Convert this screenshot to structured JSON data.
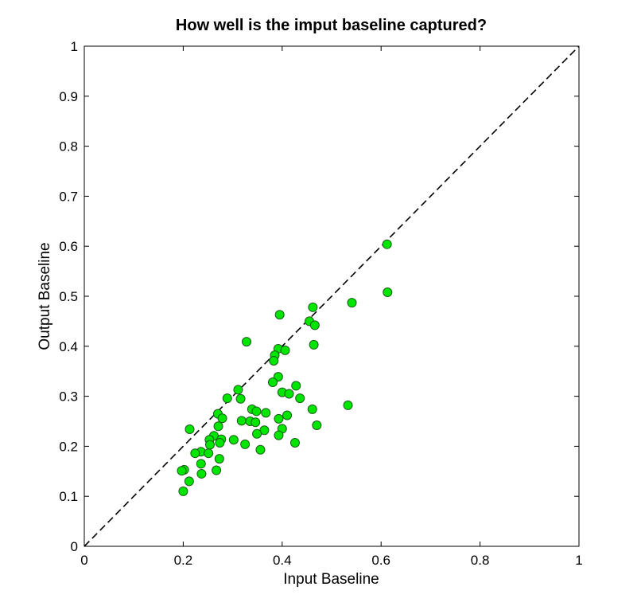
{
  "chart_data": {
    "type": "scatter",
    "title": "How well is the imput baseline captured?",
    "xlabel": "Input Baseline",
    "ylabel": "Output Baseline",
    "xlim": [
      0,
      1
    ],
    "ylim": [
      0,
      1
    ],
    "xticks": [
      0,
      0.2,
      0.4,
      0.6,
      0.8,
      1
    ],
    "xtick_labels": [
      "0",
      "0.2",
      "0.4",
      "0.6",
      "0.8",
      "1"
    ],
    "yticks": [
      0,
      0.1,
      0.2,
      0.3,
      0.4,
      0.5,
      0.6,
      0.7,
      0.8,
      0.9,
      1
    ],
    "ytick_labels": [
      "0",
      "0.1",
      "0.2",
      "0.3",
      "0.4",
      "0.5",
      "0.6",
      "0.7",
      "0.8",
      "0.9",
      "1"
    ],
    "grid": false,
    "reference_line": {
      "style": "dashed",
      "color": "#000000",
      "x": [
        0,
        1
      ],
      "y": [
        0,
        1
      ]
    },
    "marker_fill": "#00e600",
    "marker_edge": "#1a5c1a",
    "series": [
      {
        "points": [
          [
            0.612,
            0.604
          ],
          [
            0.613,
            0.508
          ],
          [
            0.541,
            0.487
          ],
          [
            0.462,
            0.478
          ],
          [
            0.455,
            0.45
          ],
          [
            0.466,
            0.442
          ],
          [
            0.395,
            0.463
          ],
          [
            0.464,
            0.403
          ],
          [
            0.328,
            0.409
          ],
          [
            0.392,
            0.395
          ],
          [
            0.406,
            0.392
          ],
          [
            0.385,
            0.382
          ],
          [
            0.383,
            0.371
          ],
          [
            0.392,
            0.339
          ],
          [
            0.381,
            0.328
          ],
          [
            0.428,
            0.321
          ],
          [
            0.311,
            0.313
          ],
          [
            0.4,
            0.308
          ],
          [
            0.414,
            0.305
          ],
          [
            0.289,
            0.296
          ],
          [
            0.316,
            0.295
          ],
          [
            0.436,
            0.296
          ],
          [
            0.533,
            0.282
          ],
          [
            0.461,
            0.274
          ],
          [
            0.339,
            0.274
          ],
          [
            0.348,
            0.27
          ],
          [
            0.367,
            0.267
          ],
          [
            0.27,
            0.265
          ],
          [
            0.279,
            0.256
          ],
          [
            0.41,
            0.262
          ],
          [
            0.393,
            0.255
          ],
          [
            0.318,
            0.251
          ],
          [
            0.335,
            0.25
          ],
          [
            0.346,
            0.248
          ],
          [
            0.47,
            0.242
          ],
          [
            0.271,
            0.24
          ],
          [
            0.213,
            0.234
          ],
          [
            0.4,
            0.235
          ],
          [
            0.364,
            0.232
          ],
          [
            0.349,
            0.225
          ],
          [
            0.393,
            0.222
          ],
          [
            0.262,
            0.221
          ],
          [
            0.253,
            0.213
          ],
          [
            0.302,
            0.213
          ],
          [
            0.277,
            0.214
          ],
          [
            0.274,
            0.207
          ],
          [
            0.325,
            0.204
          ],
          [
            0.426,
            0.207
          ],
          [
            0.254,
            0.203
          ],
          [
            0.356,
            0.193
          ],
          [
            0.236,
            0.189
          ],
          [
            0.224,
            0.186
          ],
          [
            0.251,
            0.186
          ],
          [
            0.273,
            0.175
          ],
          [
            0.236,
            0.165
          ],
          [
            0.202,
            0.153
          ],
          [
            0.197,
            0.151
          ],
          [
            0.267,
            0.152
          ],
          [
            0.237,
            0.145
          ],
          [
            0.212,
            0.13
          ],
          [
            0.2,
            0.11
          ]
        ]
      }
    ]
  }
}
